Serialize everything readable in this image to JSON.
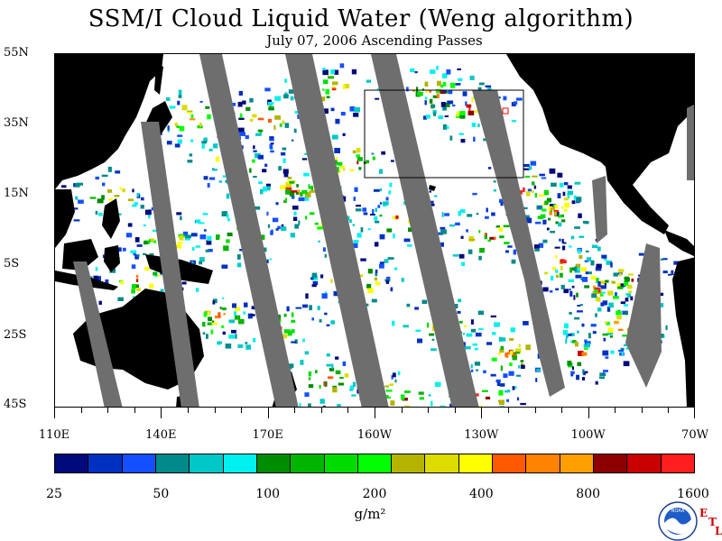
{
  "title": "SSM/I Cloud Liquid Water (Weng algorithm)",
  "subtitle": "July 07, 2006  Ascending Passes",
  "map": {
    "lat_labels": [
      "55N",
      "35N",
      "15N",
      "5S",
      "25S",
      "45S"
    ],
    "lon_labels": [
      "110E",
      "140E",
      "170E",
      "160W",
      "130W",
      "100W",
      "70W"
    ],
    "colors": {
      "land": "#000000",
      "no_data": "#6e6e6e",
      "clear": "#ffffff",
      "box_outline": "#000000",
      "marker": "#ff0000"
    }
  },
  "colorbar": {
    "colors": [
      "#000a7a",
      "#0030c0",
      "#1450ff",
      "#008a8a",
      "#00c8c8",
      "#00f0f0",
      "#008c00",
      "#00b400",
      "#00dc00",
      "#00ff00",
      "#b4b400",
      "#dcdc00",
      "#ffff00",
      "#ff5a00",
      "#ff8200",
      "#ffa000",
      "#8c0000",
      "#c80000",
      "#ff1e1e"
    ],
    "tick_labels": [
      "25",
      "50",
      "100",
      "200",
      "400",
      "800",
      "1600"
    ],
    "units": "g/m²"
  },
  "logo": {
    "icon": "noaa-logo-icon",
    "text": "NOAA",
    "etl_letters": [
      "E",
      "T",
      "L"
    ]
  }
}
